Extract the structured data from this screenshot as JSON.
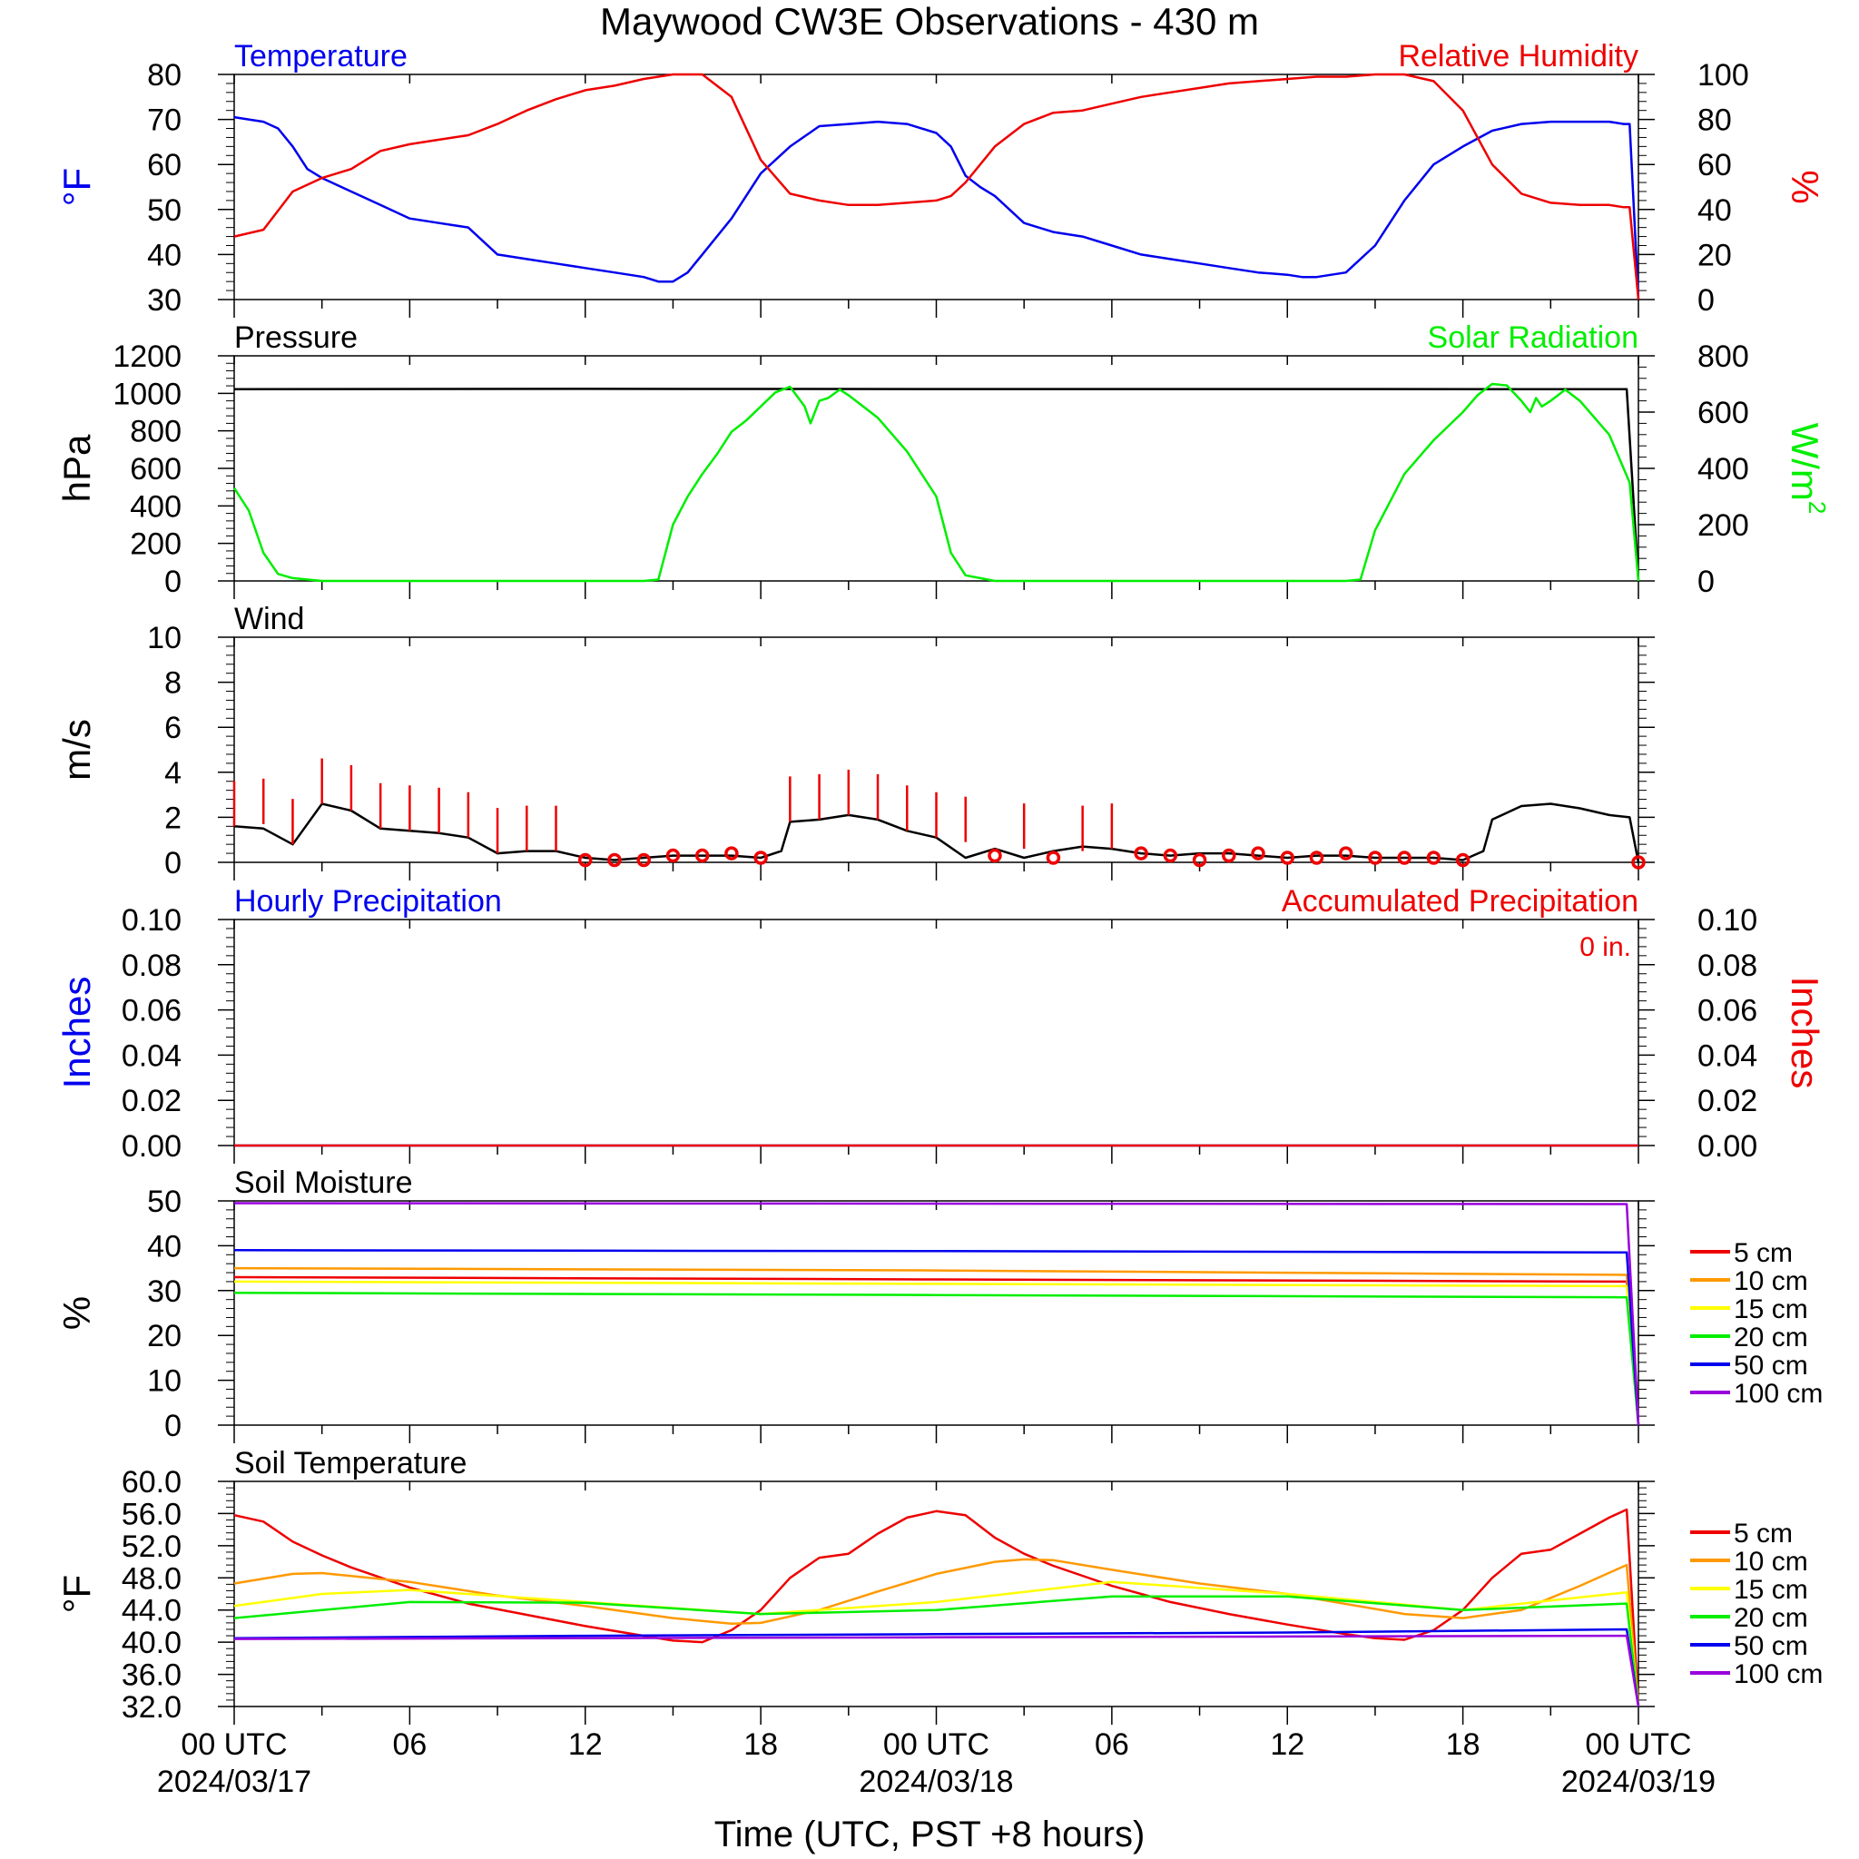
{
  "title": "Maywood CW3E Observations - 430 m",
  "xaxis": {
    "label": "Time (UTC, PST +8 hours)",
    "ticks": [
      {
        "hour": 0,
        "label": "00 UTC",
        "date": "2024/03/17"
      },
      {
        "hour": 6,
        "label": "06",
        "date": ""
      },
      {
        "hour": 12,
        "label": "12",
        "date": ""
      },
      {
        "hour": 18,
        "label": "18",
        "date": ""
      },
      {
        "hour": 24,
        "label": "00 UTC",
        "date": "2024/03/18"
      },
      {
        "hour": 30,
        "label": "06",
        "date": ""
      },
      {
        "hour": 36,
        "label": "12",
        "date": ""
      },
      {
        "hour": 42,
        "label": "18",
        "date": ""
      },
      {
        "hour": 48,
        "label": "00 UTC",
        "date": "2024/03/19"
      }
    ]
  },
  "colors": {
    "blue": "#0000ee",
    "red": "#ee0000",
    "green": "#00ee00",
    "black": "#000000",
    "orange": "#ff9900",
    "yellow": "#ffff00",
    "purple": "#9900dd"
  },
  "chart_data": [
    {
      "type": "line",
      "panel": "temperature-humidity",
      "x_unit": "hours since 2024/03/17 00 UTC",
      "left_title": "Temperature",
      "left_ylabel": "°F",
      "left_ylim": [
        30,
        80
      ],
      "left_ticks": [
        "30",
        "40",
        "50",
        "60",
        "70",
        "80"
      ],
      "right_title": "Relative Humidity",
      "right_ylabel": "%",
      "right_ylim": [
        0,
        100
      ],
      "right_ticks": [
        "0",
        "20",
        "40",
        "60",
        "80",
        "100"
      ],
      "series": [
        {
          "name": "Temperature",
          "axis": "left",
          "color": "#0000ee",
          "x": [
            0,
            1,
            1.5,
            2,
            2.5,
            3,
            4,
            5,
            6,
            7,
            8,
            9,
            10,
            11,
            12,
            13,
            14,
            14.5,
            15,
            15.5,
            16,
            17,
            18,
            19,
            20,
            21,
            22,
            23,
            24,
            24.5,
            25,
            25.5,
            26,
            27,
            28,
            29,
            30,
            31,
            32,
            33,
            34,
            35,
            36,
            36.5,
            37,
            38,
            39,
            40,
            41,
            42,
            43,
            44,
            45,
            46,
            47,
            47.5,
            47.7,
            48
          ],
          "y": [
            70.5,
            69.5,
            68,
            64,
            59,
            57,
            54,
            51,
            48,
            47,
            46,
            40,
            39,
            38,
            37,
            36,
            35,
            34,
            34,
            36,
            40,
            48,
            58,
            64,
            68.5,
            69,
            69.5,
            69,
            67,
            64,
            57.5,
            55,
            53,
            47,
            45,
            44,
            42,
            40,
            39,
            38,
            37,
            36,
            35.5,
            35,
            35,
            36,
            42,
            52,
            60,
            64,
            67.5,
            69,
            69.5,
            69.5,
            69.5,
            69,
            69,
            30
          ]
        },
        {
          "name": "Relative Humidity",
          "axis": "right",
          "color": "#ee0000",
          "x": [
            0,
            1,
            2,
            3,
            4,
            5,
            6,
            7,
            8,
            9,
            10,
            11,
            12,
            13,
            14,
            15,
            16,
            17,
            18,
            19,
            20,
            21,
            22,
            23,
            24,
            24.5,
            25,
            26,
            27,
            28,
            29,
            30,
            31,
            32,
            33,
            34,
            35,
            36,
            37,
            38,
            39,
            40,
            41,
            42,
            43,
            44,
            45,
            46,
            47,
            47.5,
            47.7,
            48
          ],
          "y": [
            28,
            31,
            48,
            54,
            58,
            66,
            69,
            71,
            73,
            78,
            84,
            89,
            93,
            95,
            98,
            100,
            100,
            90,
            62,
            47,
            44,
            42,
            42,
            43,
            44,
            46,
            52,
            68,
            78,
            83,
            84,
            87,
            90,
            92,
            94,
            96,
            97,
            98,
            99,
            99,
            100,
            100,
            97,
            84,
            60,
            47,
            43,
            42,
            42,
            41,
            41,
            0
          ]
        }
      ]
    },
    {
      "type": "line",
      "panel": "pressure-solar",
      "left_title": "Pressure",
      "left_ylabel": "hPa",
      "left_ylim": [
        0,
        1200
      ],
      "left_ticks": [
        "0",
        "200",
        "400",
        "600",
        "800",
        "1000",
        "1200"
      ],
      "right_title": "Solar Radiation",
      "right_ylabel": "W/m",
      "right_ylabel_sup": "2",
      "right_ylim": [
        0,
        800
      ],
      "right_ticks": [
        "0",
        "200",
        "400",
        "600",
        "800"
      ],
      "series": [
        {
          "name": "Pressure",
          "axis": "left",
          "color": "#000000",
          "x": [
            0,
            12,
            24,
            36,
            47.6,
            48
          ],
          "y": [
            1022,
            1024,
            1023,
            1023,
            1022,
            0
          ]
        },
        {
          "name": "Solar Radiation",
          "axis": "right",
          "color": "#00ee00",
          "x": [
            0,
            0.5,
            1,
            1.5,
            2,
            3,
            4,
            14,
            14.5,
            15,
            15.5,
            16,
            16.5,
            17,
            17.5,
            18,
            18.5,
            19,
            19.5,
            19.7,
            20,
            20.3,
            20.7,
            21,
            21.5,
            22,
            23,
            24,
            24.5,
            25,
            26,
            37,
            38,
            38.5,
            39,
            39.5,
            40,
            40.5,
            41,
            41.5,
            42,
            42.5,
            43,
            43.5,
            44,
            44.3,
            44.5,
            44.7,
            45,
            45.5,
            46,
            47,
            47.7,
            48
          ],
          "y": [
            330,
            250,
            100,
            25,
            10,
            0,
            0,
            0,
            5,
            200,
            300,
            380,
            450,
            530,
            570,
            620,
            670,
            690,
            620,
            560,
            640,
            650,
            680,
            660,
            620,
            580,
            460,
            300,
            100,
            20,
            0,
            0,
            0,
            5,
            180,
            280,
            380,
            440,
            500,
            550,
            600,
            660,
            700,
            695,
            640,
            600,
            650,
            620,
            640,
            680,
            640,
            520,
            350,
            0
          ]
        }
      ]
    },
    {
      "type": "line",
      "panel": "wind",
      "left_title": "Wind",
      "left_ylabel": "m/s",
      "left_ylim": [
        0,
        10
      ],
      "left_ticks": [
        "0",
        "2",
        "4",
        "6",
        "8",
        "10"
      ],
      "series": [
        {
          "name": "Wind speed",
          "axis": "left",
          "color": "#000000",
          "x": [
            0,
            1,
            2,
            3,
            4,
            5,
            6,
            7,
            8,
            9,
            10,
            11,
            12,
            13,
            14,
            15,
            16,
            17,
            18,
            18.7,
            19,
            20,
            21,
            22,
            23,
            24,
            25,
            26,
            27,
            28,
            29,
            30,
            31,
            32,
            33,
            34,
            35,
            36,
            37,
            38,
            39,
            40,
            41,
            42,
            42.7,
            43,
            44,
            45,
            46,
            47,
            47.7,
            48
          ],
          "y": [
            1.6,
            1.5,
            0.8,
            2.6,
            2.3,
            1.5,
            1.4,
            1.3,
            1.1,
            0.4,
            0.5,
            0.5,
            0.2,
            0.1,
            0.2,
            0.3,
            0.3,
            0.3,
            0.2,
            0.5,
            1.8,
            1.9,
            2.1,
            1.9,
            1.4,
            1.1,
            0.2,
            0.6,
            0.2,
            0.5,
            0.7,
            0.6,
            0.4,
            0.3,
            0.4,
            0.4,
            0.3,
            0.2,
            0.3,
            0.3,
            0.2,
            0.2,
            0.2,
            0.1,
            0.5,
            1.9,
            2.5,
            2.6,
            2.4,
            2.1,
            2.0,
            0
          ]
        },
        {
          "name": "Wind barbs",
          "color": "#ee0000",
          "x": [
            0,
            1,
            2,
            3,
            4,
            5,
            6,
            7,
            8,
            9,
            10,
            11,
            19,
            20,
            21,
            22,
            23,
            24,
            25,
            27,
            29,
            30
          ],
          "y": [
            1.6,
            1.7,
            0.8,
            2.6,
            2.3,
            1.5,
            1.4,
            1.3,
            1.1,
            0.4,
            0.5,
            0.5,
            1.8,
            1.9,
            2.1,
            1.9,
            1.4,
            1.1,
            0.9,
            0.6,
            0.5,
            0.6
          ]
        },
        {
          "name": "Calm markers",
          "color": "#ee0000",
          "x": [
            12,
            13,
            14,
            15,
            16,
            17,
            18,
            26,
            28,
            31,
            32,
            33,
            34,
            35,
            36,
            37,
            38,
            39,
            40,
            41,
            42,
            48
          ],
          "y": [
            0.1,
            0.1,
            0.1,
            0.3,
            0.3,
            0.4,
            0.2,
            0.3,
            0.2,
            0.4,
            0.3,
            0.1,
            0.3,
            0.4,
            0.2,
            0.2,
            0.4,
            0.2,
            0.2,
            0.2,
            0.1,
            0
          ]
        }
      ]
    },
    {
      "type": "line",
      "panel": "precipitation",
      "left_title": "Hourly Precipitation",
      "left_ylabel": "Inches",
      "left_ylim": [
        0,
        0.1
      ],
      "left_ticks": [
        "0.00",
        "0.02",
        "0.04",
        "0.06",
        "0.08",
        "0.10"
      ],
      "right_title": "Accumulated Precipitation",
      "right_ylabel": "Inches",
      "right_ylim": [
        0,
        0.1
      ],
      "right_ticks": [
        "0.00",
        "0.02",
        "0.04",
        "0.06",
        "0.08",
        "0.10"
      ],
      "annotation": "0 in.",
      "series": [
        {
          "name": "Hourly Precipitation",
          "axis": "left",
          "color": "#0000ee",
          "x": [
            0,
            48
          ],
          "y": [
            0,
            0
          ]
        },
        {
          "name": "Accumulated Precipitation",
          "axis": "right",
          "color": "#ee0000",
          "x": [
            0,
            48
          ],
          "y": [
            0,
            0
          ]
        }
      ]
    },
    {
      "type": "line",
      "panel": "soil-moisture",
      "left_title": "Soil Moisture",
      "left_ylabel": "%",
      "left_ylim": [
        0,
        50
      ],
      "left_ticks": [
        "0",
        "10",
        "20",
        "30",
        "40",
        "50"
      ],
      "series": [
        {
          "name": "5 cm",
          "color": "#ee0000",
          "x": [
            0,
            24,
            47.6,
            48
          ],
          "y": [
            33,
            32.5,
            32,
            0
          ]
        },
        {
          "name": "10 cm",
          "color": "#ff9900",
          "x": [
            0,
            24,
            47.6,
            48
          ],
          "y": [
            35,
            34.5,
            33.5,
            0
          ]
        },
        {
          "name": "15 cm",
          "color": "#ffff00",
          "x": [
            0,
            24,
            47.6,
            48
          ],
          "y": [
            32,
            31.5,
            31,
            0
          ]
        },
        {
          "name": "20 cm",
          "color": "#00ee00",
          "x": [
            0,
            24,
            47.6,
            48
          ],
          "y": [
            29.5,
            29,
            28.5,
            0
          ]
        },
        {
          "name": "50 cm",
          "color": "#0000ee",
          "x": [
            0,
            24,
            47.6,
            48
          ],
          "y": [
            39,
            38.8,
            38.5,
            0
          ]
        },
        {
          "name": "100 cm",
          "color": "#9900dd",
          "x": [
            0,
            24,
            47.6,
            48
          ],
          "y": [
            49.5,
            49.4,
            49.3,
            0
          ]
        }
      ]
    },
    {
      "type": "line",
      "panel": "soil-temperature",
      "left_title": "Soil Temperature",
      "left_ylabel": "°F",
      "left_ylim": [
        32,
        60
      ],
      "left_ticks": [
        "32.0",
        "36.0",
        "40.0",
        "44.0",
        "48.0",
        "52.0",
        "56.0",
        "60.0"
      ],
      "series": [
        {
          "name": "5 cm",
          "color": "#ee0000",
          "x": [
            0,
            1,
            2,
            3,
            4,
            6,
            8,
            10,
            12,
            14,
            15,
            16,
            17,
            18,
            19,
            20,
            21,
            22,
            23,
            24,
            25,
            26,
            27,
            28,
            30,
            32,
            34,
            36,
            38,
            39,
            40,
            41,
            42,
            43,
            44,
            45,
            46,
            47,
            47.6,
            48
          ],
          "y": [
            55.8,
            55,
            52.5,
            50.8,
            49.3,
            46.8,
            44.8,
            43.4,
            42,
            40.8,
            40.2,
            40,
            41.5,
            44,
            48,
            50.5,
            51,
            53.5,
            55.5,
            56.3,
            55.8,
            53,
            51,
            49.5,
            47,
            45,
            43.5,
            42.2,
            41,
            40.5,
            40.3,
            41.5,
            44,
            48,
            51,
            51.5,
            53.5,
            55.5,
            56.5,
            32
          ]
        },
        {
          "name": "10 cm",
          "color": "#ff9900",
          "x": [
            0,
            2,
            3,
            6,
            9,
            12,
            15,
            17,
            18,
            20,
            22,
            24,
            26,
            27,
            28,
            30,
            33,
            36,
            40,
            42,
            44,
            46,
            47.6,
            48
          ],
          "y": [
            47.3,
            48.5,
            48.6,
            47.5,
            45.8,
            44.5,
            43,
            42.3,
            42.4,
            44,
            46.3,
            48.5,
            50,
            50.3,
            50.2,
            49,
            47.3,
            46,
            43.5,
            43,
            44,
            47,
            49.6,
            32
          ]
        },
        {
          "name": "15 cm",
          "color": "#ffff00",
          "x": [
            0,
            3,
            6,
            12,
            18,
            24,
            30,
            36,
            42,
            47.6,
            48
          ],
          "y": [
            44.5,
            46,
            46.5,
            45,
            43.5,
            45,
            47.5,
            46,
            44,
            46.2,
            32
          ]
        },
        {
          "name": "20 cm",
          "color": "#00ee00",
          "x": [
            0,
            6,
            12,
            18,
            24,
            30,
            36,
            42,
            47.6,
            48
          ],
          "y": [
            43,
            45,
            44.9,
            43.5,
            44,
            45.7,
            45.7,
            44,
            44.8,
            32
          ]
        },
        {
          "name": "50 cm",
          "color": "#0000ee",
          "x": [
            0,
            12,
            24,
            36,
            47.6,
            48
          ],
          "y": [
            40.5,
            40.8,
            41,
            41.2,
            41.6,
            32
          ]
        },
        {
          "name": "100 cm",
          "color": "#9900dd",
          "x": [
            0,
            12,
            24,
            36,
            47.6,
            48
          ],
          "y": [
            40.4,
            40.5,
            40.6,
            40.7,
            40.8,
            32
          ]
        }
      ]
    }
  ]
}
